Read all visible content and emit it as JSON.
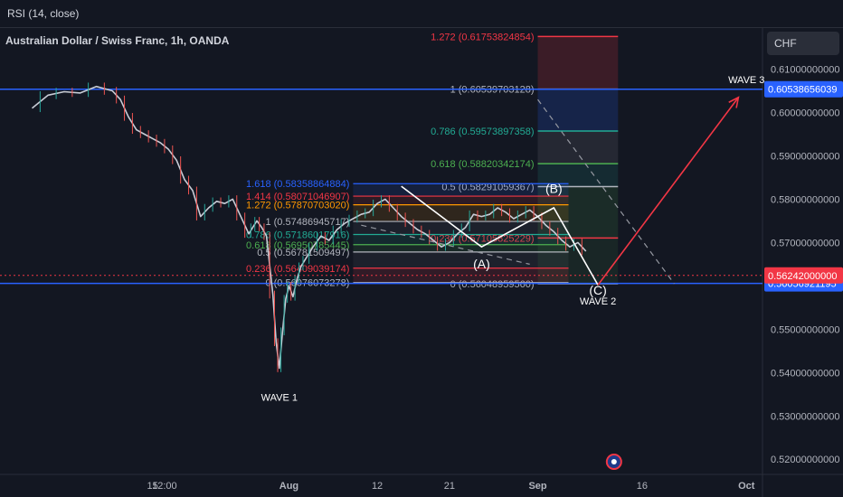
{
  "header": {
    "indicator": "RSI (14, close)",
    "title": "Australian Dollar / Swiss Franc, 1h, OANDA",
    "currency": "CHF"
  },
  "chart_data": {
    "type": "line",
    "symbol": "AUDCHF",
    "timeframe": "1h",
    "ylim": [
      0.5165,
      0.6195
    ],
    "price_ticks": [
      "0.61000000000",
      "0.60000000000",
      "0.59000000000",
      "0.58000000000",
      "0.57000000000",
      "0.55000000000",
      "0.54000000000",
      "0.53000000000",
      "0.52000000000"
    ],
    "price_tick_values": [
      0.61,
      0.6,
      0.59,
      0.58,
      0.57,
      0.55,
      0.54,
      0.53,
      0.52
    ],
    "x_ticks": [
      "15",
      "12:00",
      "Aug",
      "12",
      "21",
      "Sep",
      "16",
      "Oct"
    ],
    "x_tick_days": [
      15,
      16.5,
      32,
      43,
      52,
      63,
      76,
      89
    ],
    "last_price": {
      "value": 0.56242,
      "label": "0.56242000000",
      "color": "#f23645"
    },
    "horizontal_lines": [
      {
        "value": 0.60538656039,
        "label": "0.60538656039",
        "color": "#2962ff"
      },
      {
        "value": 0.56056921195,
        "label": "0.56056921195",
        "color": "#2962ff"
      }
    ],
    "series": [
      {
        "points": [
          [
            0,
            0.601
          ],
          [
            2,
            0.604
          ],
          [
            4,
            0.6048
          ],
          [
            6,
            0.6045
          ],
          [
            8,
            0.606
          ],
          [
            10,
            0.605
          ],
          [
            11,
            0.603
          ],
          [
            12,
            0.599
          ],
          [
            13,
            0.596
          ],
          [
            14,
            0.595
          ],
          [
            15,
            0.594
          ],
          [
            16,
            0.593
          ],
          [
            17,
            0.5915
          ],
          [
            18,
            0.589
          ],
          [
            19,
            0.5845
          ],
          [
            20,
            0.582
          ],
          [
            21,
            0.576
          ],
          [
            22,
            0.578
          ],
          [
            23,
            0.5795
          ],
          [
            24,
            0.579
          ],
          [
            25,
            0.58
          ],
          [
            26,
            0.576
          ],
          [
            27,
            0.572
          ],
          [
            27.5,
            0.5735
          ],
          [
            28,
            0.575
          ],
          [
            28.6,
            0.5735
          ],
          [
            29.2,
            0.5715
          ],
          [
            30,
            0.558
          ],
          [
            30.4,
            0.547
          ],
          [
            30.8,
            0.541
          ],
          [
            31.2,
            0.5495
          ],
          [
            31.6,
            0.557
          ],
          [
            32,
            0.56
          ],
          [
            32.5,
            0.5575
          ],
          [
            33,
            0.5615
          ],
          [
            33.5,
            0.5645
          ],
          [
            34,
            0.566
          ],
          [
            35,
            0.569
          ],
          [
            36,
            0.5715
          ],
          [
            37,
            0.5705
          ],
          [
            38,
            0.573
          ],
          [
            39,
            0.5745
          ],
          [
            40,
            0.5755
          ],
          [
            41,
            0.5765
          ],
          [
            42,
            0.577
          ],
          [
            43,
            0.579
          ],
          [
            44,
            0.58
          ],
          [
            45,
            0.578
          ],
          [
            46,
            0.576
          ],
          [
            47,
            0.5745
          ],
          [
            48,
            0.573
          ],
          [
            49,
            0.572
          ],
          [
            50,
            0.5705
          ],
          [
            51,
            0.569
          ],
          [
            52,
            0.57
          ],
          [
            53,
            0.572
          ],
          [
            54,
            0.5735
          ],
          [
            55,
            0.5765
          ],
          [
            56,
            0.576
          ],
          [
            57,
            0.5765
          ],
          [
            58,
            0.578
          ],
          [
            59,
            0.577
          ],
          [
            60,
            0.5755
          ],
          [
            61,
            0.5765
          ],
          [
            62,
            0.5775
          ],
          [
            63,
            0.576
          ],
          [
            64,
            0.574
          ],
          [
            65,
            0.5725
          ],
          [
            66,
            0.5705
          ],
          [
            67,
            0.569
          ],
          [
            68,
            0.57
          ],
          [
            69,
            0.568
          ]
        ]
      }
    ],
    "fib_left": {
      "x_days": [
        40,
        43
      ],
      "levels": [
        {
          "ratio": "1.618",
          "label": "1.618 (0.58358864884)",
          "value": 0.58358864884,
          "color": "#2962ff"
        },
        {
          "ratio": "1.414",
          "label": "1.414 (0.58071046907)",
          "value": 0.58071046907,
          "color": "#f23645"
        },
        {
          "ratio": "1.272",
          "label": "1.272 (0.57870703020)",
          "value": 0.5787070302,
          "color": "#ff9800"
        },
        {
          "ratio": "1",
          "label": "1 (0.57486945717)",
          "value": 0.57486945717,
          "color": "#b2b5be"
        },
        {
          "ratio": "0.786",
          "label": "0.786 (0.57186017916)",
          "value": 0.57186017916,
          "color": "#22ab94"
        },
        {
          "ratio": "0.618",
          "label": "0.618 (0.56950785445)",
          "value": 0.56950785445,
          "color": "#4caf50"
        },
        {
          "ratio": "0.5",
          "label": "0.5 (0.56781509497)",
          "value": 0.56781509497,
          "color": "#b2b5be"
        },
        {
          "ratio": "0.236",
          "label": "0.236 (0.56409039174)",
          "value": 0.56409039174,
          "color": "#f23645"
        },
        {
          "ratio": "0",
          "label": "0 (0.56076073278)",
          "value": 0.56076073278,
          "color": "#b2b5be"
        }
      ]
    },
    "fib_right": {
      "x_days": [
        63,
        73
      ],
      "levels": [
        {
          "ratio": "1.272",
          "label": "1.272 (0.61753824854)",
          "value": 0.61753824854,
          "color": "#f23645"
        },
        {
          "ratio": "1",
          "label": "1 (0.60539703128)",
          "value": 0.60539703128,
          "color": "#b2b5be"
        },
        {
          "ratio": "0.786",
          "label": "0.786 (0.59573897358)",
          "value": 0.59573897358,
          "color": "#22ab94"
        },
        {
          "ratio": "0.618",
          "label": "0.618 (0.58820342174)",
          "value": 0.58820342174,
          "color": "#4caf50"
        },
        {
          "ratio": "0.5",
          "label": "0.5 (0.58291059367)",
          "value": 0.58291059367,
          "color": "#b2b5be"
        },
        {
          "ratio": "0.236",
          "label": "0.236 (0.57105825229)",
          "value": 0.57105825229,
          "color": "#f23645"
        },
        {
          "ratio": "0",
          "label": "0 (0.56048959560)",
          "value": 0.5604895956,
          "color": "#b2b5be"
        }
      ]
    },
    "waves": [
      {
        "label": "WAVE 1",
        "day": 30.8,
        "value": 0.5335
      },
      {
        "label": "(A)",
        "day": 56,
        "value": 0.564
      },
      {
        "label": "(B)",
        "day": 65,
        "value": 0.5815
      },
      {
        "label": "(C)",
        "day": 70.5,
        "value": 0.558
      },
      {
        "label": "WAVE 2",
        "day": 70.5,
        "value": 0.5557
      },
      {
        "label": "WAVE 3",
        "day": 89,
        "value": 0.6068
      }
    ],
    "abc_path": [
      [
        46,
        0.583
      ],
      [
        56,
        0.569
      ],
      [
        65,
        0.578
      ],
      [
        70.5,
        0.5602
      ]
    ],
    "wave3_arrow": [
      [
        70.5,
        0.5602
      ],
      [
        88,
        0.6035
      ]
    ],
    "dashed_path": [
      [
        63,
        0.603
      ],
      [
        80,
        0.5605
      ]
    ],
    "dashed_left": [
      [
        41,
        0.574
      ],
      [
        62,
        0.565
      ]
    ],
    "flag_icon_day": 72.5
  }
}
